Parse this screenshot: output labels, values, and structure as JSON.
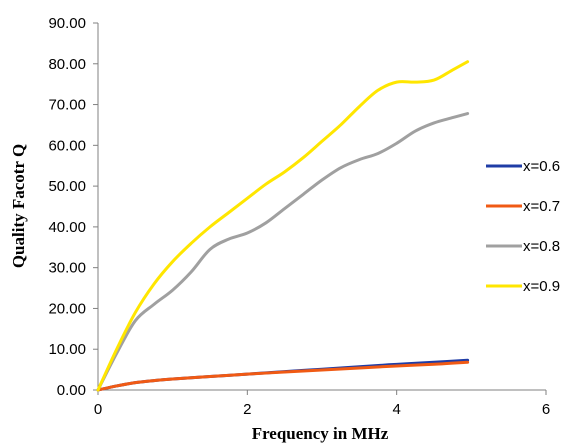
{
  "chart_data": {
    "type": "line",
    "xlabel": "Frequency in MHz",
    "ylabel": "Quality Facotr Q",
    "xlim": [
      0,
      6
    ],
    "ylim": [
      0,
      90
    ],
    "x_ticks": [
      "0",
      "2",
      "4",
      "6"
    ],
    "y_ticks": [
      "0.00",
      "10.00",
      "20.00",
      "30.00",
      "40.00",
      "50.00",
      "60.00",
      "70.00",
      "80.00",
      "90.00"
    ],
    "grid": false,
    "legend_position": "right",
    "series": [
      {
        "name": "x=0.6",
        "color": "#1f3ca6",
        "x": [
          0,
          0.25,
          0.5,
          0.75,
          1.0,
          1.5,
          2.0,
          2.5,
          3.0,
          3.5,
          4.0,
          4.5,
          4.95
        ],
        "y": [
          0,
          1.0,
          1.8,
          2.3,
          2.7,
          3.3,
          3.9,
          4.5,
          5.1,
          5.7,
          6.3,
          6.8,
          7.3
        ]
      },
      {
        "name": "x=0.7",
        "color": "#f05a14",
        "x": [
          0,
          0.25,
          0.5,
          0.75,
          1.0,
          1.5,
          2.0,
          2.5,
          3.0,
          3.5,
          4.0,
          4.5,
          4.95
        ],
        "y": [
          0,
          1.0,
          1.8,
          2.3,
          2.7,
          3.3,
          3.9,
          4.4,
          4.9,
          5.4,
          5.9,
          6.3,
          6.8
        ]
      },
      {
        "name": "x=0.8",
        "color": "#a0a0a0",
        "x": [
          0,
          0.25,
          0.5,
          0.75,
          1.0,
          1.25,
          1.5,
          1.75,
          2.0,
          2.25,
          2.5,
          2.75,
          3.0,
          3.25,
          3.5,
          3.75,
          4.0,
          4.25,
          4.5,
          4.75,
          4.95
        ],
        "y": [
          0,
          9.0,
          17.0,
          21.0,
          24.5,
          29.0,
          34.5,
          37.0,
          38.5,
          41.0,
          44.5,
          48.0,
          51.5,
          54.5,
          56.5,
          58.0,
          60.5,
          63.5,
          65.5,
          66.8,
          67.8
        ]
      },
      {
        "name": "x=0.9",
        "color": "#ffe600",
        "x": [
          0,
          0.25,
          0.5,
          0.75,
          1.0,
          1.25,
          1.5,
          1.75,
          2.0,
          2.25,
          2.5,
          2.75,
          3.0,
          3.25,
          3.5,
          3.75,
          4.0,
          4.25,
          4.5,
          4.75,
          4.95
        ],
        "y": [
          0,
          10.0,
          19.0,
          26.0,
          31.5,
          36.0,
          40.0,
          43.5,
          47.0,
          50.5,
          53.5,
          57.0,
          61.0,
          65.0,
          69.5,
          73.5,
          75.5,
          75.5,
          76.0,
          78.5,
          80.5
        ]
      }
    ]
  }
}
